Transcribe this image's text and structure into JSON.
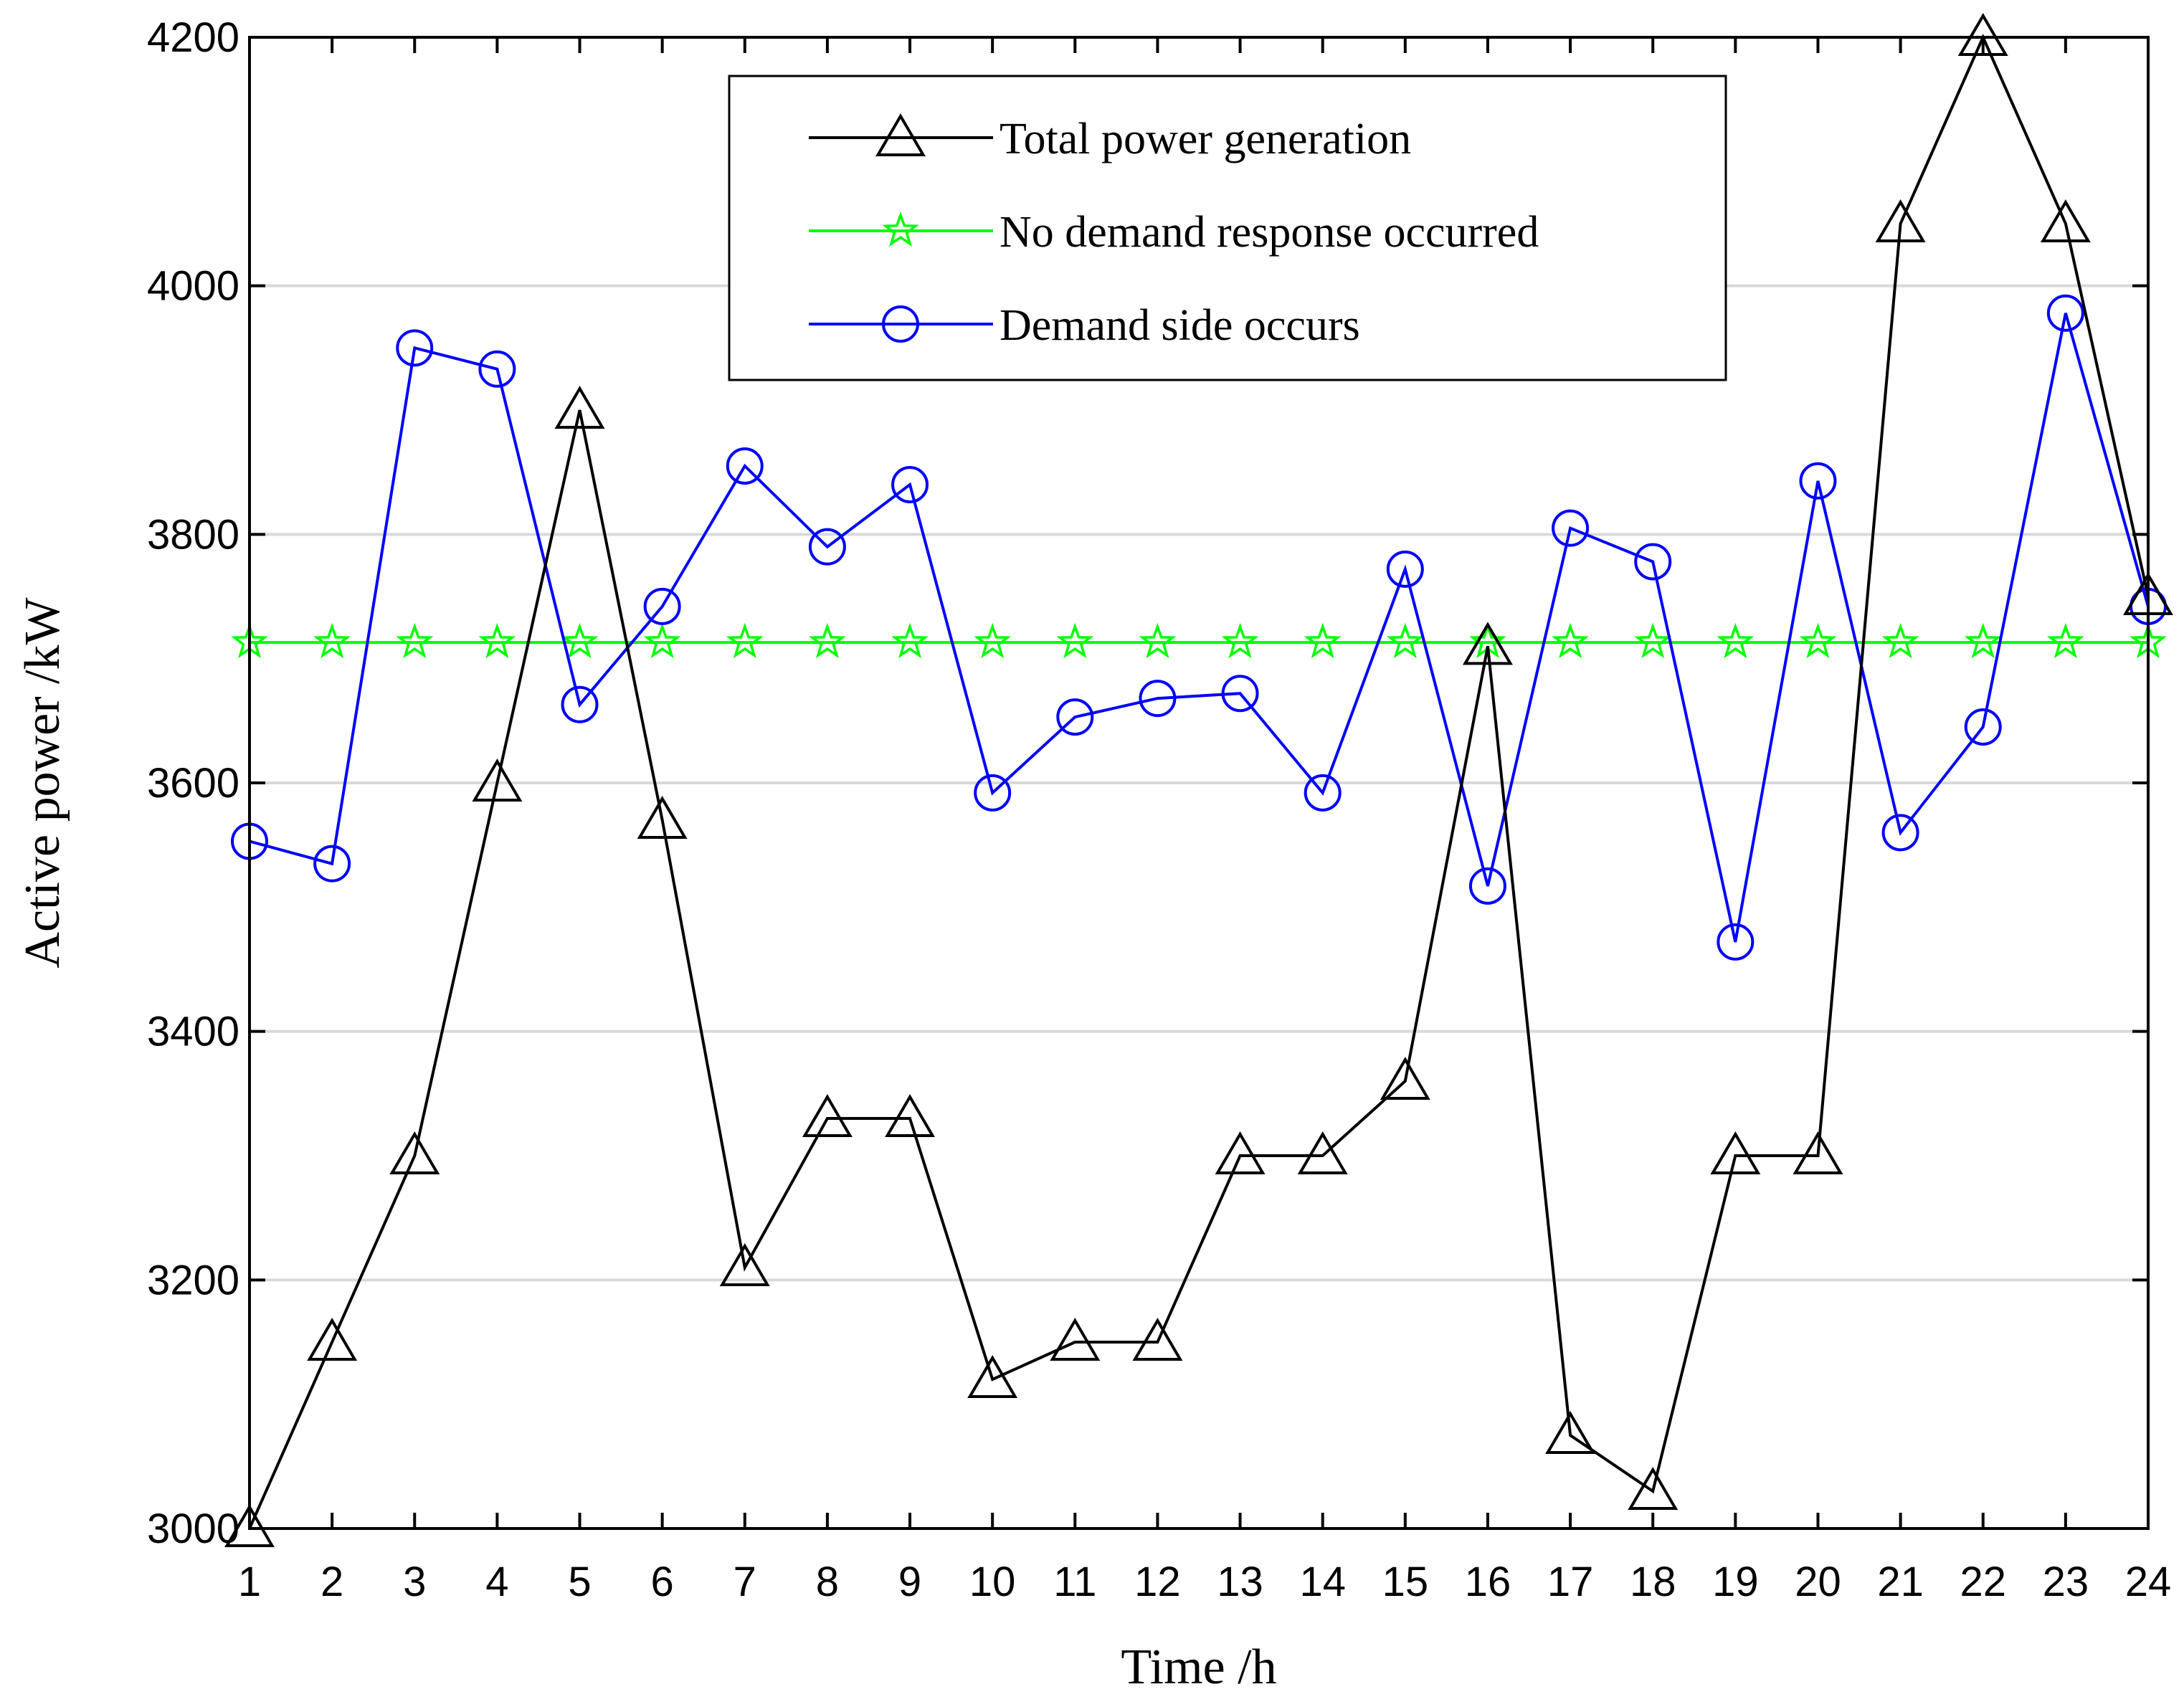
{
  "chart_data": {
    "type": "line",
    "title": "",
    "xlabel": "Time /h",
    "ylabel": "Active power /kW",
    "categories": [
      "1",
      "2",
      "3",
      "4",
      "5",
      "6",
      "7",
      "8",
      "9",
      "10",
      "11",
      "12",
      "13",
      "14",
      "15",
      "16",
      "17",
      "18",
      "19",
      "20",
      "21",
      "22",
      "23",
      "24"
    ],
    "xlim": [
      1,
      24
    ],
    "ylim": [
      3000,
      4200
    ],
    "yticks": [
      3000,
      3200,
      3400,
      3600,
      3800,
      4000,
      4200
    ],
    "grid": "horizontal",
    "legend_position": "top-center",
    "series": [
      {
        "name": "Total power generation",
        "color": "#000000",
        "marker": "triangle",
        "values": [
          3000,
          3150,
          3300,
          3600,
          3900,
          3570,
          3210,
          3330,
          3330,
          3120,
          3150,
          3150,
          3300,
          3300,
          3360,
          3710,
          3075,
          3030,
          3300,
          3300,
          4050,
          4200,
          4050,
          3750
        ]
      },
      {
        "name": "No demand response occurred",
        "color": "#00ff00",
        "marker": "star",
        "values": [
          3713,
          3713,
          3713,
          3713,
          3713,
          3713,
          3713,
          3713,
          3713,
          3713,
          3713,
          3713,
          3713,
          3713,
          3713,
          3713,
          3713,
          3713,
          3713,
          3713,
          3713,
          3713,
          3713,
          3713
        ]
      },
      {
        "name": "Demand side occurs",
        "color": "#0000ff",
        "marker": "circle",
        "values": [
          3553,
          3535,
          3950,
          3933,
          3663,
          3742,
          3855,
          3790,
          3840,
          3592,
          3653,
          3668,
          3672,
          3592,
          3772,
          3517,
          3805,
          3778,
          3472,
          3843,
          3560,
          3645,
          3978,
          3742
        ]
      }
    ]
  }
}
